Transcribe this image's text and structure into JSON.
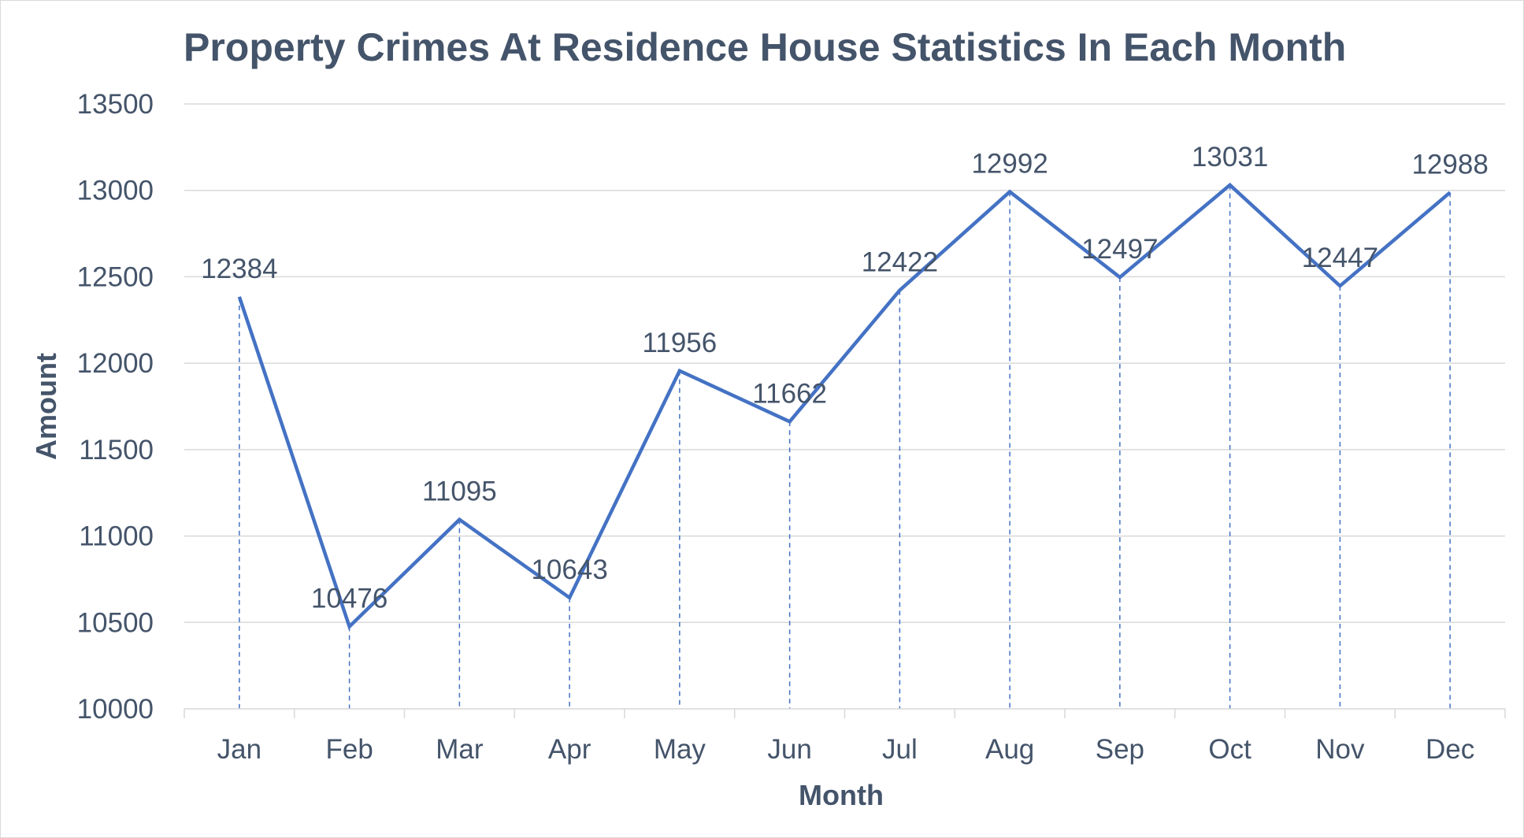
{
  "chart_data": {
    "type": "line",
    "title": "Property Crimes At Residence House Statistics In Each Month",
    "xlabel": "Month",
    "ylabel": "Amount",
    "categories": [
      "Jan",
      "Feb",
      "Mar",
      "Apr",
      "May",
      "Jun",
      "Jul",
      "Aug",
      "Sep",
      "Oct",
      "Nov",
      "Dec"
    ],
    "series": [
      {
        "values": [
          12384,
          10476,
          11095,
          10643,
          11956,
          11662,
          12422,
          12992,
          12497,
          13031,
          12447,
          12988
        ]
      }
    ],
    "ylim": [
      10000,
      13500
    ],
    "yticks": [
      "10000",
      "10500",
      "11000",
      "11500",
      "12000",
      "12500",
      "13000",
      "13500"
    ],
    "grid": true,
    "drop_lines": true,
    "legend": "none",
    "colors": {
      "line": "#4472c4",
      "text": "#44546a",
      "grid": "#d9d9d9"
    }
  }
}
